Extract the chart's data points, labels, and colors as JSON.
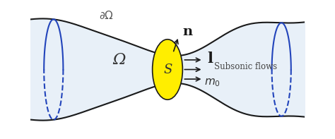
{
  "bg_color": "#ffffff",
  "nozzle_top_color": "#1a1a1a",
  "nozzle_bottom_color": "#1a1a1a",
  "nozzle_fill_color": "#e8f0f8",
  "blue_oval_color": "#2244bb",
  "yellow_ellipse_color": "#ffee00",
  "yellow_ellipse_edge": "#1a1a1a",
  "arrow_color": "#1a1a1a",
  "label_omega": "Ω",
  "label_partial_omega": "∂Ω",
  "label_S": "S",
  "label_l": "l",
  "label_n": "n",
  "label_m0": "m_0",
  "label_subsonic": "Subsonic flows"
}
